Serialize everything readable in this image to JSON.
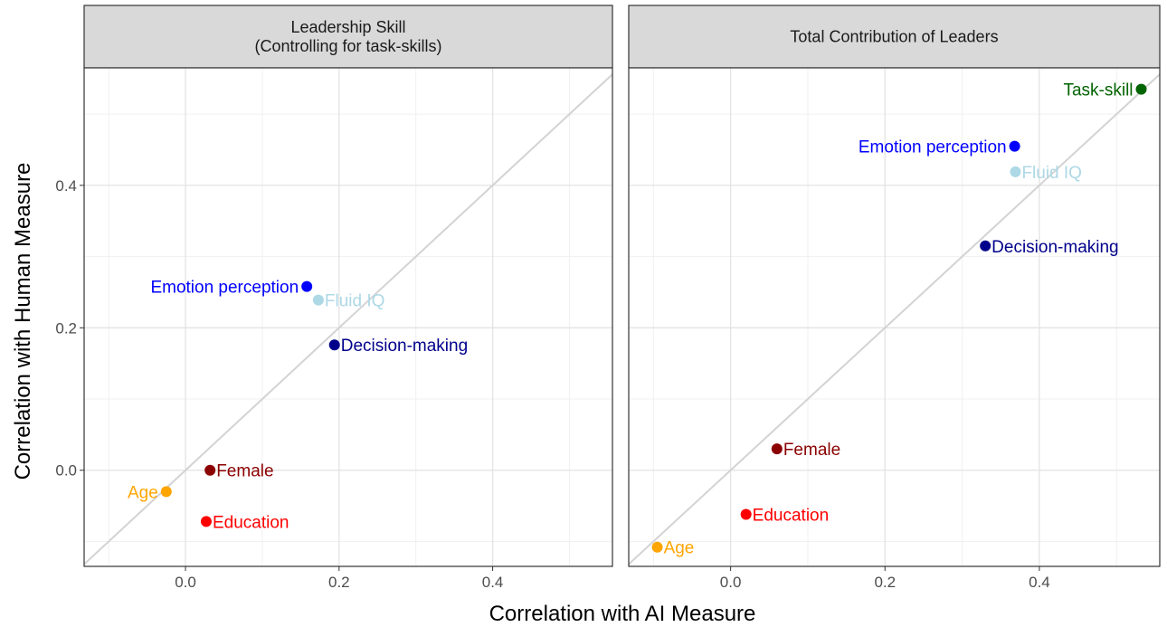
{
  "chart_data": {
    "type": "scatter",
    "xlabel": "Correlation with AI Measure",
    "ylabel": "Correlation with Human Measure",
    "x_ticks": [
      0.0,
      0.2,
      0.4
    ],
    "x_tick_labels": [
      "0.0",
      "0.2",
      "0.4"
    ],
    "y_ticks": [
      0.0,
      0.2,
      0.4
    ],
    "y_tick_labels": [
      "0.0",
      "0.2",
      "0.4"
    ],
    "xlim": [
      -0.132,
      0.556
    ],
    "ylim": [
      -0.135,
      0.565
    ],
    "reference_line": "y = x",
    "grid": true,
    "panels": [
      {
        "title": "Leadership Skill\n(Controlling for task-skills)",
        "points": [
          {
            "label": "Emotion perception",
            "x": 0.158,
            "y": 0.258,
            "color": "#0000ff",
            "label_side": "left"
          },
          {
            "label": "Fluid IQ",
            "x": 0.173,
            "y": 0.239,
            "color": "#add8e6",
            "label_side": "right"
          },
          {
            "label": "Decision-making",
            "x": 0.194,
            "y": 0.176,
            "color": "#00008b",
            "label_side": "right"
          },
          {
            "label": "Female",
            "x": 0.032,
            "y": 0.0,
            "color": "#8b0000",
            "label_side": "right"
          },
          {
            "label": "Age",
            "x": -0.025,
            "y": -0.03,
            "color": "#ffa500",
            "label_side": "left"
          },
          {
            "label": "Education",
            "x": 0.027,
            "y": -0.072,
            "color": "#ff0000",
            "label_side": "right"
          }
        ]
      },
      {
        "title": "Total Contribution of Leaders",
        "points": [
          {
            "label": "Task-skill",
            "x": 0.532,
            "y": 0.535,
            "color": "#006400",
            "label_side": "left"
          },
          {
            "label": "Emotion perception",
            "x": 0.368,
            "y": 0.455,
            "color": "#0000ff",
            "label_side": "left"
          },
          {
            "label": "Fluid IQ",
            "x": 0.369,
            "y": 0.419,
            "color": "#add8e6",
            "label_side": "right"
          },
          {
            "label": "Decision-making",
            "x": 0.33,
            "y": 0.315,
            "color": "#00008b",
            "label_side": "right"
          },
          {
            "label": "Female",
            "x": 0.06,
            "y": 0.03,
            "color": "#8b0000",
            "label_side": "right"
          },
          {
            "label": "Education",
            "x": 0.02,
            "y": -0.062,
            "color": "#ff0000",
            "label_side": "right"
          },
          {
            "label": "Age",
            "x": -0.095,
            "y": -0.108,
            "color": "#ffa500",
            "label_side": "right"
          }
        ]
      }
    ]
  }
}
